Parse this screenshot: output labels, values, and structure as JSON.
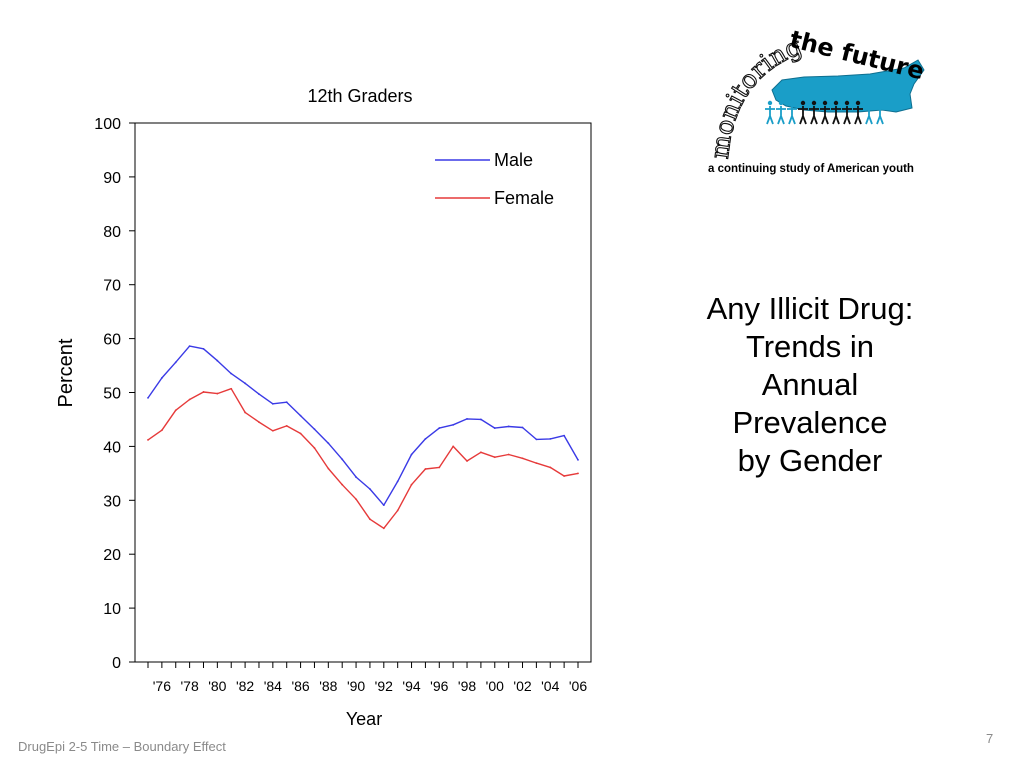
{
  "slide": {
    "title_lines": [
      "Any Illicit Drug:",
      "Trends in",
      "Annual",
      "Prevalence",
      "by Gender"
    ],
    "footer": "DrugEpi 2-5  Time – Boundary Effect",
    "page_number": "7"
  },
  "logo": {
    "arc_text": "monitoring",
    "wordmark": "the future",
    "tagline": "a continuing study of American youth",
    "map_color": "#1a9ec8"
  },
  "chart_data": {
    "type": "line",
    "title": "12th Graders",
    "xlabel": "Year",
    "ylabel": "Percent",
    "ylim": [
      0,
      100
    ],
    "yticks": [
      0,
      10,
      20,
      30,
      40,
      50,
      60,
      70,
      80,
      90,
      100
    ],
    "x": [
      1975,
      1976,
      1977,
      1978,
      1979,
      1980,
      1981,
      1982,
      1983,
      1984,
      1985,
      1986,
      1987,
      1988,
      1989,
      1990,
      1991,
      1992,
      1993,
      1994,
      1995,
      1996,
      1997,
      1998,
      1999,
      2000,
      2001,
      2002,
      2003,
      2004,
      2005,
      2006
    ],
    "xticks": [
      1976,
      1978,
      1980,
      1982,
      1984,
      1986,
      1988,
      1990,
      1992,
      1994,
      1996,
      1998,
      2000,
      2002,
      2004,
      2006
    ],
    "xtick_labels": [
      "'76",
      "'78",
      "'80",
      "'82",
      "'84",
      "'86",
      "'88",
      "'90",
      "'92",
      "'94",
      "'96",
      "'98",
      "'00",
      "'02",
      "'04",
      "'06"
    ],
    "series": [
      {
        "name": "Male",
        "color": "#3a3ae6",
        "values": [
          49.0,
          52.7,
          55.6,
          58.6,
          58.1,
          55.9,
          53.5,
          51.7,
          49.7,
          47.9,
          48.2,
          45.7,
          43.2,
          40.6,
          37.6,
          34.3,
          32.1,
          29.1,
          33.5,
          38.5,
          41.4,
          43.4,
          44.0,
          45.1,
          45.0,
          43.4,
          43.7,
          43.5,
          41.3,
          41.4,
          42.0,
          37.5
        ]
      },
      {
        "name": "Female",
        "color": "#e63a3a",
        "values": [
          41.2,
          43.0,
          46.7,
          48.7,
          50.1,
          49.8,
          50.7,
          46.3,
          44.5,
          42.9,
          43.8,
          42.4,
          39.7,
          35.9,
          32.9,
          30.2,
          26.5,
          24.8,
          28.1,
          32.9,
          35.8,
          36.1,
          40.0,
          37.3,
          38.9,
          38.0,
          38.5,
          37.8,
          36.9,
          36.1,
          34.5,
          35.0
        ]
      }
    ],
    "legend_position": "top-right",
    "grid": false
  }
}
